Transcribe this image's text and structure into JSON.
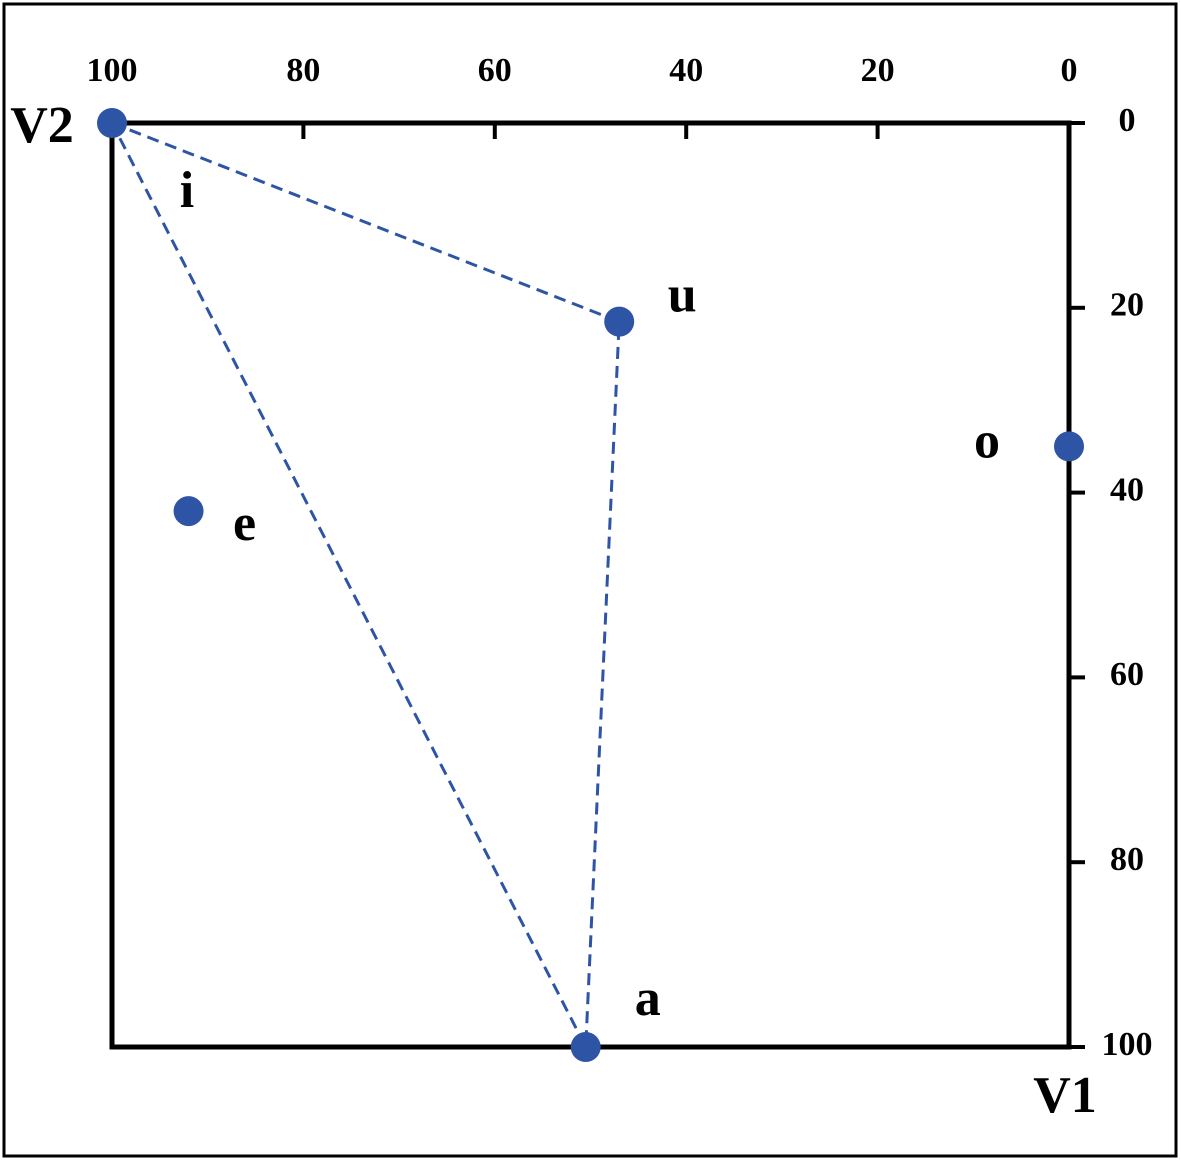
{
  "chart_data": {
    "type": "scatter",
    "x_label": "V2",
    "y_label": "V1",
    "point_labels": [
      "i",
      "u",
      "a",
      "e",
      "o"
    ],
    "x": [
      100,
      47,
      50.5,
      92,
      0
    ],
    "values": [
      0,
      21.5,
      100,
      42,
      35
    ],
    "color": "#2e55a5",
    "xlim": [
      100,
      0
    ],
    "ylim": [
      100,
      0
    ],
    "xticks": [
      100,
      80,
      60,
      40,
      20,
      0
    ],
    "yticks": [
      0,
      20,
      40,
      60,
      80,
      100
    ]
  }
}
